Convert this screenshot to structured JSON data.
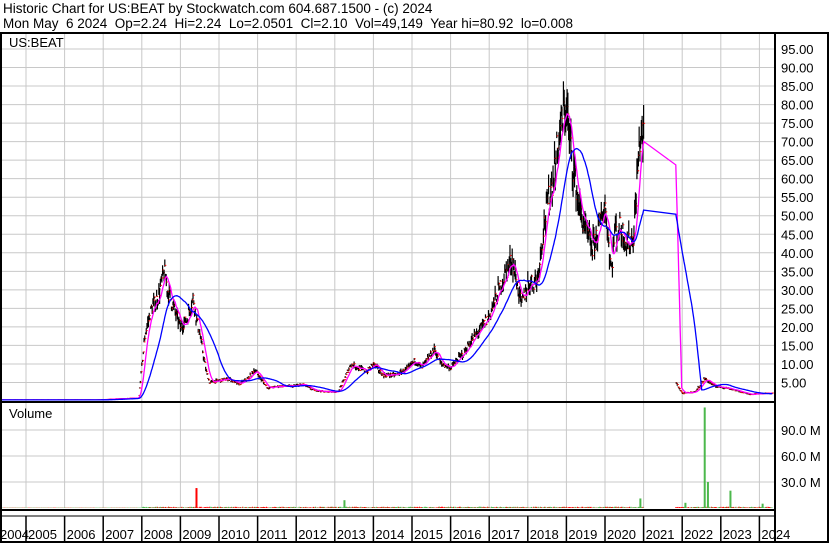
{
  "header": {
    "title": "Historic Chart for US:BEAT by Stockwatch.com 604.687.1500 - (c) 2024",
    "quote_line": "Mon May  6 2024  Op=2.24  Hi=2.24  Lo=2.0501  Cl=2.10  Vol=49,149  Year hi=80.92  lo=0.008"
  },
  "chart_data": {
    "type": "line",
    "symbol_label": "US:BEAT",
    "volume_label": "Volume",
    "x_ticks": [
      "2004",
      "2005",
      "2006",
      "2007",
      "2008",
      "2009",
      "2010",
      "2011",
      "2012",
      "2013",
      "2014",
      "2015",
      "2016",
      "2017",
      "2018",
      "2019",
      "2020",
      "2021",
      "2022",
      "2023",
      "2024"
    ],
    "y_ticks": [
      "95.00",
      "90.00",
      "85.00",
      "80.00",
      "75.00",
      "70.00",
      "65.00",
      "60.00",
      "55.00",
      "50.00",
      "45.00",
      "40.00",
      "35.00",
      "30.00",
      "25.00",
      "20.00",
      "15.00",
      "10.00",
      "5.00"
    ],
    "ylim": [
      0,
      97
    ],
    "volume_ticks": [
      "90.0 M",
      "60.0 M",
      "30.0 M"
    ],
    "volume_ylim": [
      0,
      120000000
    ],
    "grid": true,
    "colors": {
      "price": "#000000",
      "close_tick": "#ff0000",
      "ma_short": "#ff00ff",
      "ma_long": "#0000ff",
      "volume_up": "#4cb84c",
      "volume_down": "#ff0000",
      "grid": "#c8c8c8"
    },
    "price_segments": [
      [
        [
          "2004-04",
          0.3
        ],
        [
          "2006-11",
          0.3
        ],
        [
          "2007-06",
          0.6
        ],
        [
          "2007-12",
          0.8
        ],
        [
          "2008-02",
          18
        ],
        [
          "2008-04",
          25
        ],
        [
          "2008-06",
          28
        ],
        [
          "2008-08",
          35
        ],
        [
          "2008-09",
          30
        ],
        [
          "2008-11",
          25
        ],
        [
          "2009-01",
          20
        ],
        [
          "2009-03",
          22
        ],
        [
          "2009-05",
          28
        ],
        [
          "2009-06",
          22
        ],
        [
          "2009-07",
          18
        ],
        [
          "2009-09",
          8
        ],
        [
          "2009-10",
          5
        ],
        [
          "2010-01",
          5.5
        ],
        [
          "2010-04",
          6
        ],
        [
          "2010-07",
          4.5
        ],
        [
          "2010-10",
          6
        ],
        [
          "2010-12",
          8.5
        ],
        [
          "2011-02",
          6
        ],
        [
          "2011-04",
          3.5
        ],
        [
          "2011-08",
          4
        ],
        [
          "2011-12",
          4
        ],
        [
          "2012-03",
          4.5
        ],
        [
          "2012-06",
          3
        ],
        [
          "2012-10",
          2.5
        ],
        [
          "2013-02",
          2.5
        ],
        [
          "2013-04",
          6
        ],
        [
          "2013-06",
          10
        ],
        [
          "2013-08",
          9
        ],
        [
          "2013-11",
          8
        ],
        [
          "2014-01",
          10
        ],
        [
          "2014-04",
          7
        ],
        [
          "2014-08",
          7
        ],
        [
          "2014-12",
          9
        ],
        [
          "2015-02",
          11
        ],
        [
          "2015-04",
          9
        ],
        [
          "2015-08",
          14
        ],
        [
          "2015-10",
          10
        ],
        [
          "2016-01",
          9
        ],
        [
          "2016-05",
          13
        ],
        [
          "2016-08",
          17
        ],
        [
          "2016-10",
          19
        ],
        [
          "2017-01",
          23
        ],
        [
          "2017-04",
          30
        ],
        [
          "2017-08",
          38.5
        ],
        [
          "2017-11",
          26
        ],
        [
          "2018-01",
          31.5
        ],
        [
          "2018-04",
          33
        ],
        [
          "2018-06",
          47.7
        ],
        [
          "2018-09",
          61
        ],
        [
          "2018-11",
          72.8
        ],
        [
          "2019-01",
          80
        ],
        [
          "2019-02",
          70
        ],
        [
          "2019-05",
          52
        ],
        [
          "2019-07",
          46
        ],
        [
          "2019-09",
          41
        ],
        [
          "2019-11",
          46.6
        ],
        [
          "2020-01",
          53
        ],
        [
          "2020-03",
          35
        ],
        [
          "2020-04",
          46
        ],
        [
          "2020-06",
          46.6
        ],
        [
          "2020-08",
          42
        ],
        [
          "2020-10",
          45
        ],
        [
          "2020-11",
          61
        ],
        [
          "2020-12",
          72
        ],
        [
          "2021-01",
          71
        ]
      ],
      [
        [
          "2021-11",
          5
        ],
        [
          "2022-01",
          2
        ],
        [
          "2022-05",
          2.5
        ],
        [
          "2022-08",
          6
        ],
        [
          "2022-11",
          4
        ],
        [
          "2023-03",
          3.5
        ],
        [
          "2023-07",
          2.5
        ],
        [
          "2023-10",
          1.8
        ],
        [
          "2024-01",
          2
        ],
        [
          "2024-05",
          2.1
        ]
      ]
    ],
    "volume_spikes": [
      {
        "date": "2009-06",
        "value": 23000000,
        "dir": "down"
      },
      {
        "date": "2013-04",
        "value": 9000000,
        "dir": "up"
      },
      {
        "date": "2020-12",
        "value": 11000000,
        "dir": "up"
      },
      {
        "date": "2022-02",
        "value": 6000000,
        "dir": "up"
      },
      {
        "date": "2022-08",
        "value": 116000000,
        "dir": "up"
      },
      {
        "date": "2022-09",
        "value": 30000000,
        "dir": "up"
      },
      {
        "date": "2023-04",
        "value": 20000000,
        "dir": "up"
      },
      {
        "date": "2024-02",
        "value": 5000000,
        "dir": "up"
      }
    ]
  }
}
